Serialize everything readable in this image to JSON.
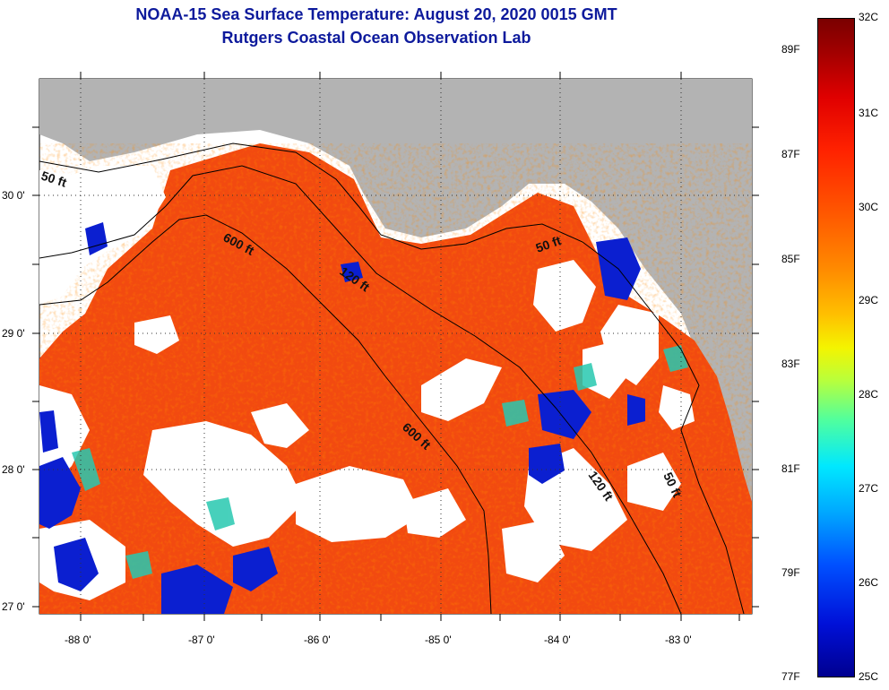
{
  "title": {
    "line1": "NOAA-15 Sea Surface Temperature:  August 20, 2020 0015 GMT",
    "line2": "Rutgers Coastal Ocean Observation Lab"
  },
  "map": {
    "lat_labels": [
      "30 0'",
      "29 0'",
      "28 0'",
      "27 0'"
    ],
    "lon_labels": [
      "-88 0'",
      "-87 0'",
      "-86 0'",
      "-85 0'",
      "-84 0'",
      "-83 0'"
    ],
    "contour_labels": [
      "50 ft",
      "600 ft",
      "120 ft",
      "50 ft",
      "600 ft",
      "120 ft",
      "50 ft"
    ]
  },
  "colorbar": {
    "fahrenheit": [
      "89F",
      "87F",
      "85F",
      "83F",
      "81F",
      "79F",
      "77F"
    ],
    "celsius": [
      "32C",
      "31C",
      "30C",
      "29C",
      "28C",
      "27C",
      "26C",
      "25C"
    ]
  },
  "colors": {
    "land": "#b3b3b3",
    "warm_water": "#ff3c00",
    "cool_water": "#0018c8",
    "title": "#0d1a9c"
  }
}
